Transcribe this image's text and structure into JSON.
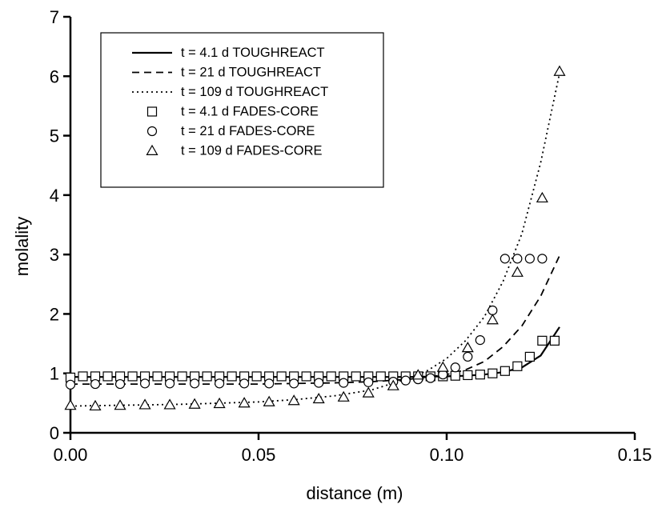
{
  "chart_data": {
    "type": "line",
    "xlabel": "distance (m)",
    "ylabel": "molality",
    "xlim": [
      0,
      0.15
    ],
    "ylim": [
      0,
      7
    ],
    "xticks": [
      "0.00",
      "0.05",
      "0.10",
      "0.15"
    ],
    "yticks": [
      "0",
      "1",
      "2",
      "3",
      "4",
      "5",
      "6",
      "7"
    ],
    "grid": false,
    "legend_position": "top-left",
    "series": [
      {
        "name": "t = 4.1 d TOUGHREACT",
        "kind": "line",
        "style": "solid",
        "x": [
          0.0,
          0.01,
          0.02,
          0.03,
          0.04,
          0.05,
          0.06,
          0.07,
          0.08,
          0.09,
          0.1,
          0.105,
          0.11,
          0.115,
          0.12,
          0.125,
          0.13
        ],
        "y": [
          0.94,
          0.94,
          0.94,
          0.94,
          0.94,
          0.94,
          0.94,
          0.94,
          0.94,
          0.94,
          0.95,
          0.96,
          0.98,
          1.02,
          1.1,
          1.3,
          1.78
        ]
      },
      {
        "name": "t = 21 d TOUGHREACT",
        "kind": "line",
        "style": "dashed",
        "x": [
          0.0,
          0.01,
          0.02,
          0.03,
          0.04,
          0.05,
          0.06,
          0.07,
          0.08,
          0.09,
          0.1,
          0.105,
          0.11,
          0.115,
          0.12,
          0.125,
          0.13
        ],
        "y": [
          0.82,
          0.82,
          0.82,
          0.82,
          0.82,
          0.82,
          0.83,
          0.84,
          0.86,
          0.9,
          0.98,
          1.06,
          1.2,
          1.45,
          1.8,
          2.3,
          2.98
        ]
      },
      {
        "name": "t = 109 d TOUGHREACT",
        "kind": "line",
        "style": "dotted",
        "x": [
          0.0,
          0.01,
          0.02,
          0.03,
          0.04,
          0.05,
          0.06,
          0.07,
          0.08,
          0.09,
          0.095,
          0.1,
          0.105,
          0.11,
          0.115,
          0.12,
          0.125,
          0.13
        ],
        "y": [
          0.45,
          0.46,
          0.47,
          0.48,
          0.5,
          0.52,
          0.56,
          0.62,
          0.72,
          0.92,
          1.05,
          1.25,
          1.55,
          1.95,
          2.55,
          3.35,
          4.55,
          6.05
        ]
      },
      {
        "name": "t = 4.1 d FADES-CORE",
        "kind": "markers",
        "marker": "square",
        "x": [
          0.0,
          0.0033,
          0.0066,
          0.0099,
          0.0132,
          0.0165,
          0.0198,
          0.0231,
          0.0264,
          0.0297,
          0.033,
          0.0363,
          0.0396,
          0.0429,
          0.0462,
          0.0495,
          0.0528,
          0.0561,
          0.0594,
          0.0627,
          0.066,
          0.0693,
          0.0726,
          0.0759,
          0.0792,
          0.0825,
          0.0858,
          0.0891,
          0.0924,
          0.0957,
          0.099,
          0.1023,
          0.1056,
          0.1089,
          0.1122,
          0.1155,
          0.1188,
          0.1221,
          0.1254,
          0.1287
        ],
        "y": [
          0.93,
          0.95,
          0.95,
          0.95,
          0.95,
          0.95,
          0.95,
          0.95,
          0.95,
          0.95,
          0.95,
          0.95,
          0.95,
          0.95,
          0.95,
          0.95,
          0.95,
          0.95,
          0.95,
          0.95,
          0.95,
          0.95,
          0.95,
          0.95,
          0.95,
          0.95,
          0.95,
          0.95,
          0.95,
          0.95,
          0.95,
          0.96,
          0.97,
          0.98,
          1.0,
          1.04,
          1.12,
          1.28,
          1.55,
          1.55
        ]
      },
      {
        "name": "t = 21 d FADES-CORE",
        "kind": "markers",
        "marker": "circle",
        "x": [
          0.0,
          0.0066,
          0.0132,
          0.0198,
          0.0264,
          0.033,
          0.0396,
          0.0462,
          0.0528,
          0.0594,
          0.066,
          0.0726,
          0.0792,
          0.0858,
          0.0891,
          0.0924,
          0.0957,
          0.099,
          0.1023,
          0.1056,
          0.1089,
          0.1122,
          0.1155,
          0.1188,
          0.1221,
          0.1254
        ],
        "y": [
          0.81,
          0.82,
          0.82,
          0.83,
          0.83,
          0.83,
          0.83,
          0.83,
          0.83,
          0.83,
          0.84,
          0.84,
          0.85,
          0.86,
          0.88,
          0.9,
          0.92,
          0.98,
          1.1,
          1.28,
          1.56,
          2.06,
          2.93,
          2.93,
          2.93,
          2.93
        ]
      },
      {
        "name": "t = 109 d FADES-CORE",
        "kind": "markers",
        "marker": "triangle",
        "x": [
          0.0,
          0.0066,
          0.0132,
          0.0198,
          0.0264,
          0.033,
          0.0396,
          0.0462,
          0.0528,
          0.0594,
          0.066,
          0.0726,
          0.0792,
          0.0858,
          0.0924,
          0.099,
          0.1056,
          0.1122,
          0.1188,
          0.1254,
          0.13
        ],
        "y": [
          0.46,
          0.45,
          0.46,
          0.47,
          0.47,
          0.48,
          0.49,
          0.5,
          0.52,
          0.54,
          0.57,
          0.6,
          0.67,
          0.79,
          0.97,
          1.1,
          1.43,
          1.9,
          2.7,
          3.95,
          6.08
        ]
      }
    ]
  }
}
